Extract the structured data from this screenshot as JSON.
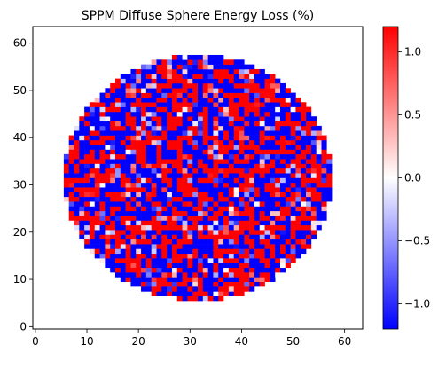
{
  "chart_data": {
    "type": "heatmap",
    "title": "SPPM Diffuse Sphere Energy Loss (%)",
    "xlabel": "",
    "ylabel": "",
    "grid_size": [
      64,
      64
    ],
    "xlim": [
      -0.5,
      63.5
    ],
    "ylim": [
      -0.5,
      63.5
    ],
    "x_ticks": [
      "0",
      "10",
      "20",
      "30",
      "40",
      "50",
      "60"
    ],
    "y_ticks": [
      "0",
      "10",
      "20",
      "30",
      "40",
      "50",
      "60"
    ],
    "disk": {
      "center_x": 31.5,
      "center_y": 31.5,
      "radius": 26
    },
    "value_range": [
      -1.2,
      1.2
    ],
    "colormap": {
      "name": "bwr",
      "low": "#0000ff",
      "mid": "#ffffff",
      "high": "#ff0000"
    },
    "outside_value": 0.0,
    "dominant_values": [
      -1.2,
      1.2
    ],
    "grid": false,
    "colorbar": {
      "position": "right",
      "ticks": [
        "−1.0",
        "−0.5",
        "0.0",
        "0.5",
        "1.0"
      ],
      "tick_values": [
        -1.0,
        -0.5,
        0.0,
        0.5,
        1.0
      ]
    }
  }
}
